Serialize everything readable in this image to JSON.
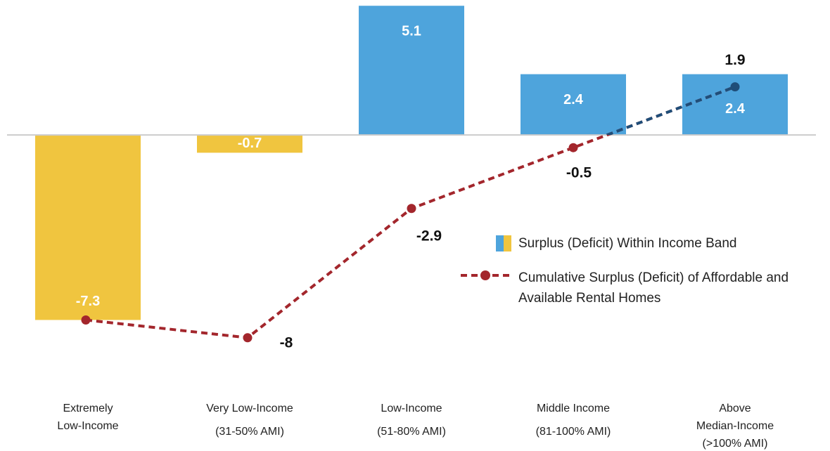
{
  "chart_data": {
    "type": "bar",
    "categories": [
      [
        "Extremely",
        "Low-Income"
      ],
      [
        "Very Low-Income",
        "(31-50% AMI)"
      ],
      [
        "Low-Income",
        "(51-80% AMI)"
      ],
      [
        "Middle Income",
        "(81-100% AMI)"
      ],
      [
        "Above",
        "Median-Income",
        "(>100% AMI)"
      ]
    ],
    "series": [
      {
        "name": "Surplus (Deficit) Within Income Band",
        "type": "bar",
        "color": "#4ea4dc",
        "negative_color": "#f0c53f",
        "values": [
          -7.3,
          -0.7,
          5.1,
          2.4,
          2.4
        ]
      },
      {
        "name": "Cumulative Surplus (Deficit) of Affordable and Available Rental Homes",
        "type": "line",
        "color": "#a3262c",
        "positive_color": "#1f4e79",
        "dashed": true,
        "values": [
          -7.3,
          -8.0,
          -2.9,
          -0.5,
          1.9
        ]
      }
    ],
    "ylim": [
      -12,
      5.3
    ],
    "grid": false
  }
}
